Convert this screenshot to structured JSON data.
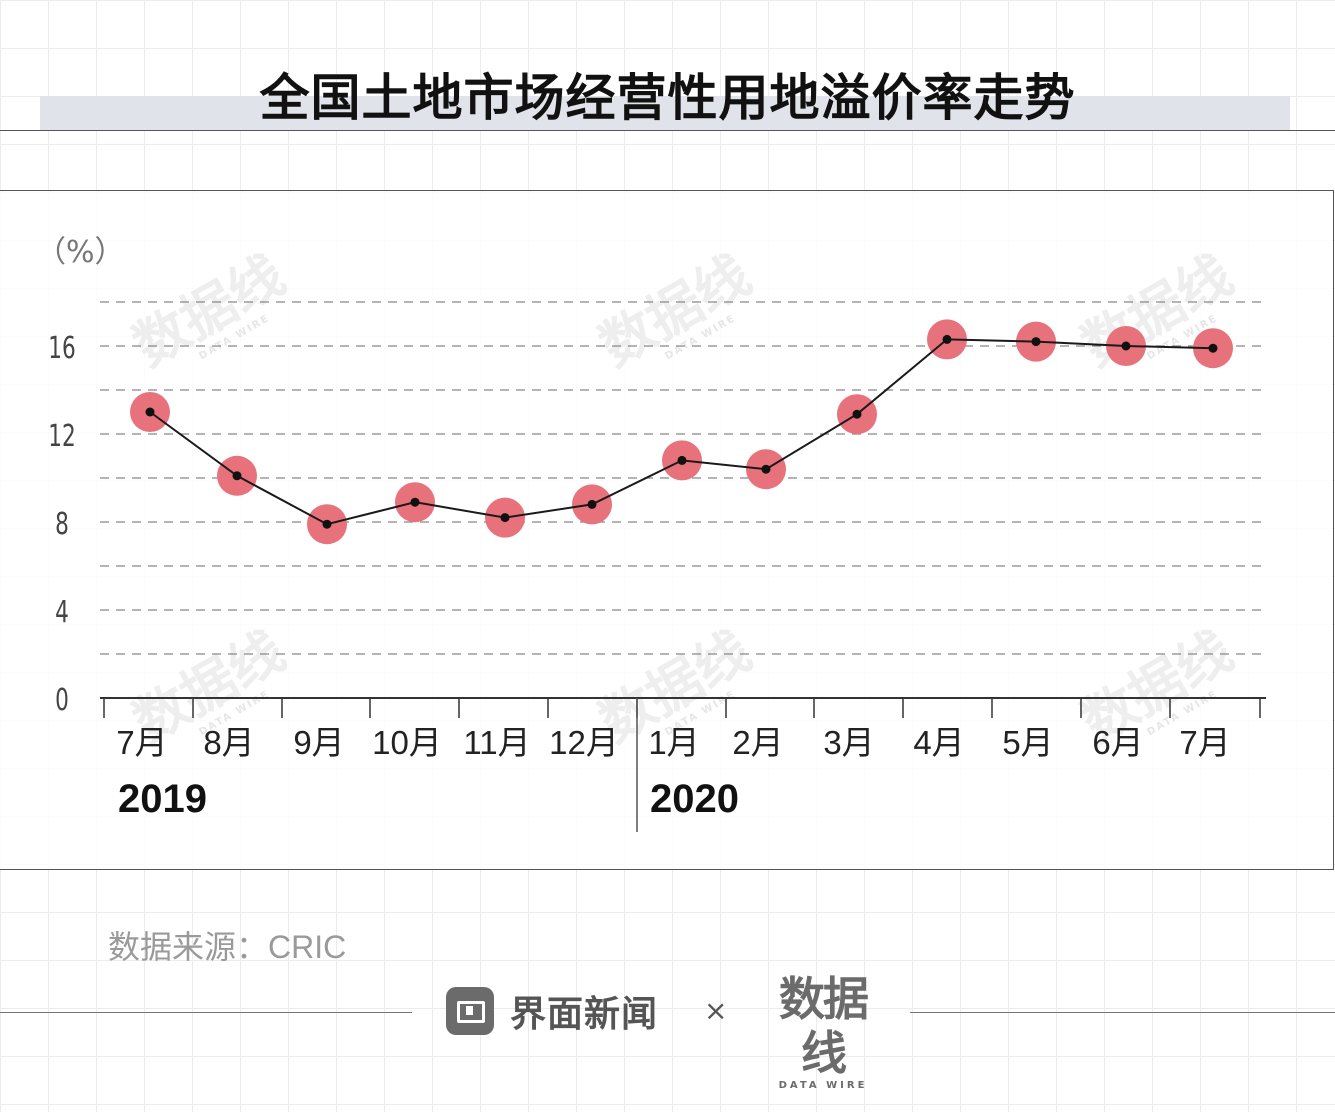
{
  "title": "全国土地市场经营性用地溢价率走势",
  "source": "数据来源：CRIC",
  "footer": {
    "brand_left": "界面新闻",
    "times": "×",
    "brand_right": "数据线",
    "brand_right_sub": "DATA WIRE"
  },
  "watermark": {
    "main": "数据线",
    "sub": "DATA WIRE"
  },
  "colors": {
    "marker_fill": "#e8727b",
    "line": "#1a1a1a",
    "title_band": "#e0e4ea"
  },
  "chart_data": {
    "type": "line",
    "ylabel": "（%）",
    "ylim": [
      0,
      18
    ],
    "yticks": [
      0,
      4,
      8,
      12,
      16
    ],
    "grid": "dashed horizontal every 2",
    "categories": [
      "7月",
      "8月",
      "9月",
      "10月",
      "11月",
      "12月",
      "1月",
      "2月",
      "3月",
      "4月",
      "5月",
      "6月",
      "7月"
    ],
    "year_groups": [
      {
        "label": "2019",
        "count": 6
      },
      {
        "label": "2020",
        "count": 7
      }
    ],
    "series": [
      {
        "values": [
          13.0,
          10.1,
          7.9,
          8.9,
          8.2,
          8.8,
          10.8,
          10.4,
          12.9,
          16.3,
          16.2,
          16.0,
          15.9
        ]
      }
    ]
  }
}
